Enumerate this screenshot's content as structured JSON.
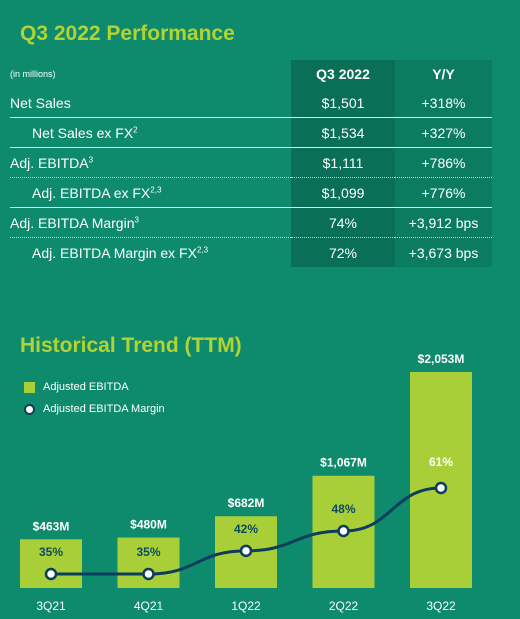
{
  "performance": {
    "title": "Q3 2022 Performance",
    "units_note": "(in millions)",
    "col_q": "Q3 2022",
    "col_yy": "Y/Y",
    "rows": [
      {
        "label": "Net Sales",
        "sup": "",
        "q": "$1,501",
        "yy": "+318%"
      },
      {
        "label": "Net Sales ex FX",
        "sup": "2",
        "q": "$1,534",
        "yy": "+327%"
      },
      {
        "label": "Adj. EBITDA",
        "sup": "3",
        "q": "$1,111",
        "yy": "+786%"
      },
      {
        "label": "Adj. EBITDA ex FX",
        "sup": "2,3",
        "q": "$1,099",
        "yy": "+776%"
      },
      {
        "label": "Adj. EBITDA Margin",
        "sup": "3",
        "q": "74%",
        "yy": "+3,912 bps"
      },
      {
        "label": "Adj. EBITDA Margin ex FX",
        "sup": "2,3",
        "q": "72%",
        "yy": "+3,673 bps"
      }
    ]
  },
  "trend": {
    "title": "Historical Trend (TTM)",
    "legend_bar": "Adjusted EBITDA",
    "legend_line": "Adjusted EBITDA Margin"
  },
  "colors": {
    "background": "#0e8a6c",
    "bar": "#a8cf38",
    "line": "#0d3d5c",
    "title": "#b3d334"
  },
  "chart_data": {
    "type": "bar",
    "categories": [
      "3Q21",
      "4Q21",
      "1Q22",
      "2Q22",
      "3Q22"
    ],
    "series": [
      {
        "name": "Adjusted EBITDA",
        "values": [
          463,
          480,
          682,
          1067,
          2053
        ],
        "labels": [
          "$463M",
          "$480M",
          "$682M",
          "$1,067M",
          "$2,053M"
        ]
      },
      {
        "name": "Adjusted EBITDA Margin",
        "type": "line",
        "values": [
          35,
          35,
          42,
          48,
          61
        ],
        "labels": [
          "35%",
          "35%",
          "42%",
          "48%",
          "61%"
        ]
      }
    ]
  }
}
